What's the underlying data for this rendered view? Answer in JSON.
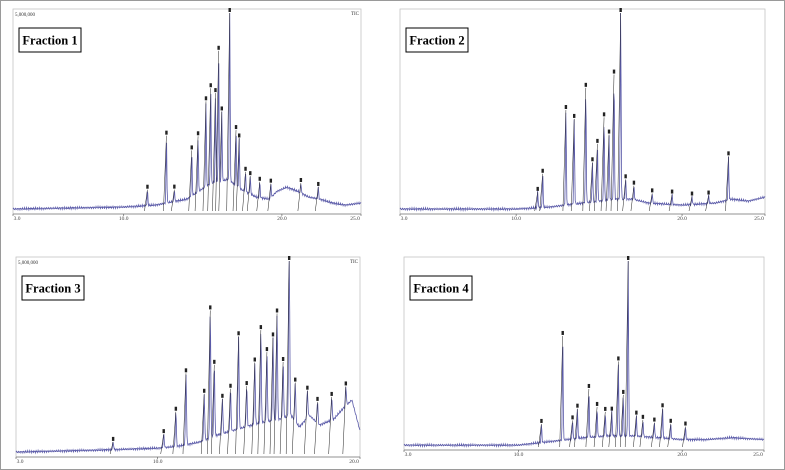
{
  "chart_data": [
    {
      "type": "line",
      "label": "Fraction 1",
      "tic": "TIC",
      "scale_label": "5,000,000",
      "xlim": [
        3.0,
        25.0
      ],
      "ticks": [
        "3.0",
        "10.0",
        "20.0",
        "25.0"
      ],
      "tick_values": [
        3,
        10,
        20,
        25
      ],
      "baseline": [
        [
          3,
          0.01
        ],
        [
          10,
          0.02
        ],
        [
          12,
          0.03
        ],
        [
          14,
          0.06
        ],
        [
          15.5,
          0.14
        ],
        [
          16.6,
          0.16
        ],
        [
          17.4,
          0.11
        ],
        [
          18.4,
          0.07
        ],
        [
          19.2,
          0.06
        ],
        [
          19.7,
          0.1
        ],
        [
          20.3,
          0.12
        ],
        [
          21,
          0.1
        ],
        [
          21.7,
          0.07
        ],
        [
          22.4,
          0.06
        ],
        [
          23.2,
          0.04
        ],
        [
          24,
          0.03
        ],
        [
          25,
          0.04
        ]
      ],
      "peaks": [
        [
          11.5,
          0.08
        ],
        [
          12.7,
          0.34
        ],
        [
          13.2,
          0.06
        ],
        [
          14.3,
          0.23
        ],
        [
          14.7,
          0.28
        ],
        [
          15.2,
          0.43
        ],
        [
          15.5,
          0.48
        ],
        [
          15.8,
          0.45
        ],
        [
          16.0,
          0.66
        ],
        [
          16.2,
          0.35
        ],
        [
          16.7,
          1.0
        ],
        [
          17.1,
          0.28
        ],
        [
          17.3,
          0.25
        ],
        [
          17.7,
          0.1
        ],
        [
          18.0,
          0.09
        ],
        [
          18.6,
          0.08
        ],
        [
          19.3,
          0.07
        ],
        [
          21.2,
          0.05
        ],
        [
          22.3,
          0.06
        ]
      ]
    },
    {
      "type": "line",
      "label": "Fraction 2",
      "tic": "",
      "scale_label": "",
      "xlim": [
        3.0,
        25.0
      ],
      "ticks": [
        "3.0",
        "10.0",
        "20.0",
        "25.0"
      ],
      "tick_values": [
        3,
        10,
        20,
        25
      ],
      "baseline": [
        [
          3,
          0.01
        ],
        [
          10,
          0.01
        ],
        [
          12,
          0.02
        ],
        [
          14,
          0.04
        ],
        [
          16,
          0.06
        ],
        [
          17,
          0.06
        ],
        [
          18,
          0.04
        ],
        [
          20,
          0.03
        ],
        [
          22,
          0.04
        ],
        [
          23,
          0.06
        ],
        [
          24,
          0.05
        ],
        [
          25,
          0.07
        ]
      ],
      "peaks": [
        [
          11.3,
          0.08
        ],
        [
          11.6,
          0.17
        ],
        [
          13.0,
          0.48
        ],
        [
          13.5,
          0.43
        ],
        [
          14.2,
          0.58
        ],
        [
          14.6,
          0.2
        ],
        [
          14.9,
          0.29
        ],
        [
          15.3,
          0.42
        ],
        [
          15.6,
          0.33
        ],
        [
          15.9,
          0.63
        ],
        [
          16.3,
          1.0
        ],
        [
          16.6,
          0.1
        ],
        [
          17.1,
          0.07
        ],
        [
          18.2,
          0.05
        ],
        [
          19.4,
          0.05
        ],
        [
          20.6,
          0.04
        ],
        [
          21.6,
          0.04
        ],
        [
          22.8,
          0.22
        ]
      ]
    },
    {
      "type": "line",
      "label": "Fraction 3",
      "tic": "TIC",
      "scale_label": "5,000,000",
      "xlim": [
        3.0,
        20.0
      ],
      "ticks": [
        "3.0",
        "10.0",
        "20.0"
      ],
      "tick_values": [
        3,
        10,
        20
      ],
      "baseline": [
        [
          3,
          0.01
        ],
        [
          7,
          0.02
        ],
        [
          10,
          0.03
        ],
        [
          11,
          0.04
        ],
        [
          12,
          0.06
        ],
        [
          13,
          0.1
        ],
        [
          14,
          0.13
        ],
        [
          15,
          0.16
        ],
        [
          16,
          0.18
        ],
        [
          16.6,
          0.2
        ],
        [
          17,
          0.14
        ],
        [
          17.5,
          0.2
        ],
        [
          18,
          0.15
        ],
        [
          18.7,
          0.18
        ],
        [
          19.2,
          0.24
        ],
        [
          19.6,
          0.28
        ],
        [
          20,
          0.12
        ]
      ],
      "peaks": [
        [
          7.8,
          0.04
        ],
        [
          10.3,
          0.07
        ],
        [
          10.9,
          0.18
        ],
        [
          11.4,
          0.37
        ],
        [
          12.3,
          0.24
        ],
        [
          12.6,
          0.66
        ],
        [
          12.8,
          0.37
        ],
        [
          13.2,
          0.18
        ],
        [
          13.6,
          0.22
        ],
        [
          14.0,
          0.48
        ],
        [
          14.4,
          0.21
        ],
        [
          14.8,
          0.32
        ],
        [
          15.1,
          0.48
        ],
        [
          15.4,
          0.36
        ],
        [
          15.7,
          0.43
        ],
        [
          15.9,
          0.55
        ],
        [
          16.2,
          0.29
        ],
        [
          16.5,
          1.0
        ],
        [
          16.8,
          0.2
        ],
        [
          17.4,
          0.14
        ],
        [
          17.9,
          0.11
        ],
        [
          18.6,
          0.12
        ],
        [
          19.3,
          0.1
        ]
      ]
    },
    {
      "type": "line",
      "label": "Fraction 4",
      "tic": "",
      "scale_label": "",
      "xlim": [
        3.0,
        25.0
      ],
      "ticks": [
        "3.0",
        "10.0",
        "20.0",
        "25.0"
      ],
      "tick_values": [
        3,
        10,
        20,
        25
      ],
      "baseline": [
        [
          3,
          0.01
        ],
        [
          8,
          0.01
        ],
        [
          10,
          0.01
        ],
        [
          12,
          0.03
        ],
        [
          14,
          0.05
        ],
        [
          15.5,
          0.06
        ],
        [
          17,
          0.06
        ],
        [
          18.5,
          0.05
        ],
        [
          20,
          0.04
        ],
        [
          21.5,
          0.04
        ],
        [
          23,
          0.05
        ],
        [
          25,
          0.04
        ]
      ],
      "peaks": [
        [
          11.4,
          0.1
        ],
        [
          12.7,
          0.56
        ],
        [
          13.3,
          0.1
        ],
        [
          13.6,
          0.16
        ],
        [
          14.3,
          0.26
        ],
        [
          14.8,
          0.16
        ],
        [
          15.3,
          0.13
        ],
        [
          15.7,
          0.13
        ],
        [
          16.1,
          0.4
        ],
        [
          16.4,
          0.22
        ],
        [
          16.7,
          1.0
        ],
        [
          17.2,
          0.11
        ],
        [
          17.6,
          0.09
        ],
        [
          18.3,
          0.08
        ],
        [
          18.8,
          0.16
        ],
        [
          19.3,
          0.08
        ],
        [
          20.2,
          0.07
        ]
      ]
    }
  ]
}
